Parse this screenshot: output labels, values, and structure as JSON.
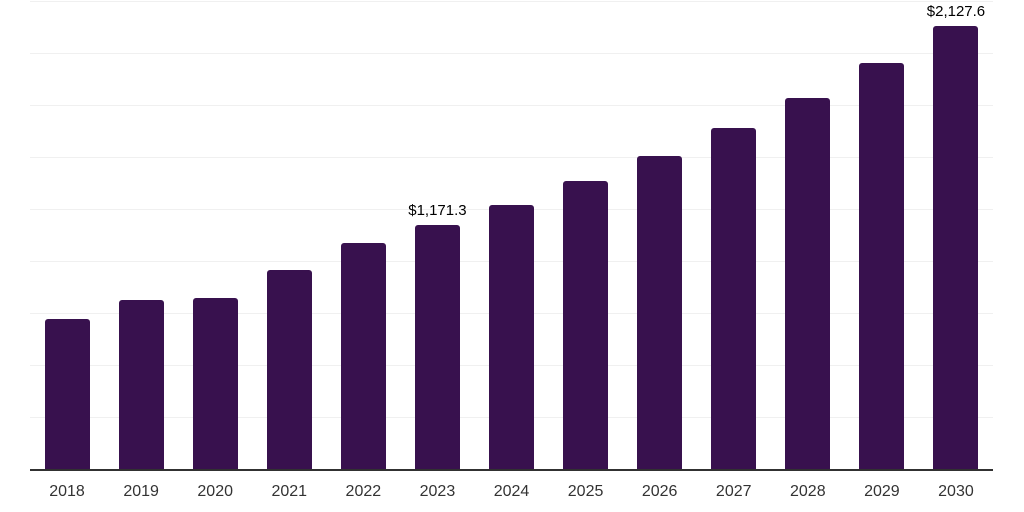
{
  "chart_data": {
    "type": "bar",
    "title": "",
    "xlabel": "",
    "ylabel": "",
    "categories": [
      "2018",
      "2019",
      "2020",
      "2021",
      "2022",
      "2023",
      "2024",
      "2025",
      "2026",
      "2027",
      "2028",
      "2029",
      "2030"
    ],
    "values": [
      721,
      813,
      822,
      957,
      1087,
      1171.3,
      1270,
      1385,
      1505,
      1640,
      1784,
      1952,
      2127.6
    ],
    "annotations": [
      {
        "category": "2023",
        "text": "$1,171.3"
      },
      {
        "category": "2030",
        "text": "$2,127.6"
      }
    ],
    "ylim": [
      0,
      2250
    ],
    "grid": true,
    "grid_interval": 250,
    "y_tick_labels_visible": false,
    "legend": "none",
    "colors": {
      "bar": "#38114E",
      "axis_line": "#313131",
      "gridline": "#f0f0f0",
      "tick_label": "#333333",
      "data_label": "#000000",
      "background": "#ffffff"
    }
  }
}
